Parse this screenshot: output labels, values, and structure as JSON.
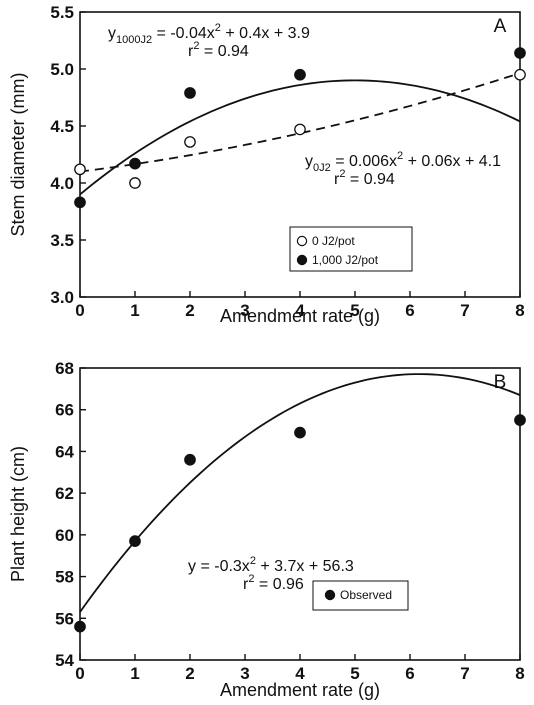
{
  "chart_data": [
    {
      "type": "scatter",
      "panel_label": "A",
      "xlabel": "Amendment rate (g)",
      "ylabel": "Stem diameter (mm)",
      "xlim": [
        0,
        8
      ],
      "ylim": [
        3.0,
        5.5
      ],
      "x_ticks": [
        "0",
        "1",
        "2",
        "3",
        "4",
        "5",
        "6",
        "7",
        "8"
      ],
      "y_ticks": [
        "3.0",
        "3.5",
        "4.0",
        "4.5",
        "5.0",
        "5.5"
      ],
      "legend_position": "bottom-center",
      "series": [
        {
          "name": "0 J2/pot",
          "marker": "open-circle",
          "x": [
            0,
            1,
            2,
            4,
            8
          ],
          "values": [
            4.12,
            4.0,
            4.36,
            4.47,
            4.95
          ],
          "fit": {
            "style": "dashed",
            "coefficients": [
              0.006,
              0.06,
              4.1
            ],
            "eq_main": "y",
            "eq_sub": "0J2",
            "eq_rest_a": " = 0.006x",
            "eq_sup": "2",
            "eq_rest_b": " + 0.06x + 4.1",
            "r2_a": "r",
            "r2_sup": "2",
            "r2_b": " = 0.94"
          }
        },
        {
          "name": "1,000 J2/pot",
          "marker": "filled-circle",
          "x": [
            0,
            1,
            2,
            4,
            8
          ],
          "values": [
            3.83,
            4.17,
            4.79,
            4.95,
            5.14
          ],
          "fit": {
            "style": "solid",
            "coefficients": [
              -0.04,
              0.4,
              3.9
            ],
            "eq_main": "y",
            "eq_sub": "1000J2",
            "eq_rest_a": " = -0.04x",
            "eq_sup": "2",
            "eq_rest_b": " + 0.4x + 3.9",
            "r2_a": "r",
            "r2_sup": "2",
            "r2_b": " = 0.94"
          }
        }
      ]
    },
    {
      "type": "scatter",
      "panel_label": "B",
      "xlabel": "Amendment rate (g)",
      "ylabel": "Plant height (cm)",
      "xlim": [
        0,
        8
      ],
      "ylim": [
        54,
        68
      ],
      "x_ticks": [
        "0",
        "1",
        "2",
        "3",
        "4",
        "5",
        "6",
        "7",
        "8"
      ],
      "y_ticks": [
        "54",
        "56",
        "58",
        "60",
        "62",
        "64",
        "66",
        "68"
      ],
      "legend_position": "bottom-right",
      "series": [
        {
          "name": "Observed",
          "marker": "filled-circle",
          "x": [
            0,
            1,
            2,
            4,
            8
          ],
          "values": [
            55.6,
            59.7,
            63.6,
            64.9,
            65.5
          ],
          "fit": {
            "style": "solid",
            "coefficients": [
              -0.3,
              3.7,
              56.3
            ],
            "eq_main": "y",
            "eq_sub": "",
            "eq_rest_a": " = -0.3x",
            "eq_sup": "2",
            "eq_rest_b": " + 3.7x + 56.3",
            "r2_a": "r",
            "r2_sup": "2",
            "r2_b": " = 0.96"
          }
        }
      ]
    }
  ]
}
